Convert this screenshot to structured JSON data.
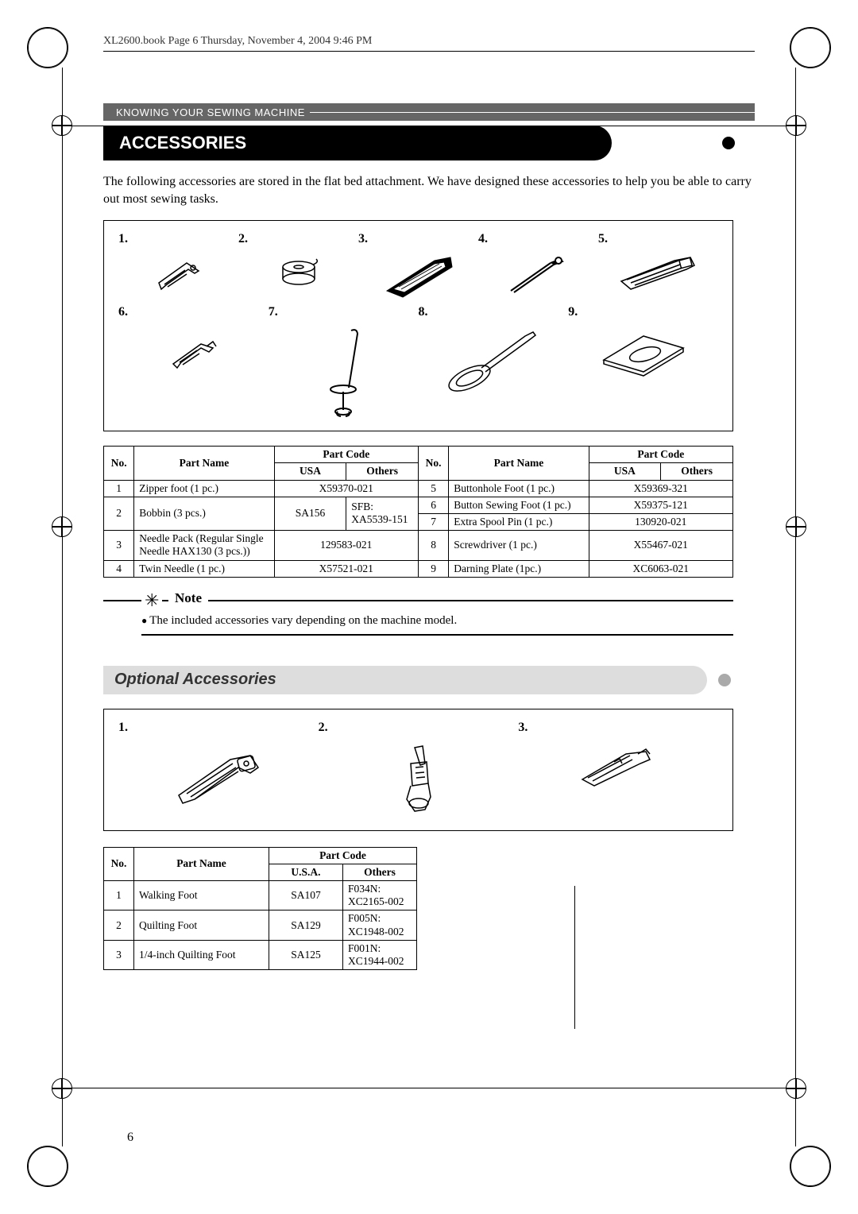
{
  "bookref": "XL2600.book  Page 6  Thursday, November 4, 2004  9:46 PM",
  "section_header": "KNOWING YOUR SEWING MACHINE",
  "title": "ACCESSORIES",
  "intro": "The following accessories are stored in the flat bed attachment. We have designed these accessories to help you be able to carry out most sewing tasks.",
  "grid_numbers": {
    "row1": [
      "1.",
      "2.",
      "3.",
      "4.",
      "5."
    ],
    "row2": [
      "6.",
      "7.",
      "8.",
      "9."
    ]
  },
  "parts_header": {
    "no": "No.",
    "part_name": "Part Name",
    "part_code": "Part Code",
    "usa": "USA",
    "others": "Others"
  },
  "parts": [
    {
      "no": "1",
      "name": "Zipper foot (1 pc.)",
      "usa": "X59370-021",
      "others": "X59370-021",
      "merge": true
    },
    {
      "no": "2",
      "name": "Bobbin (3 pcs.)",
      "usa": "SA156",
      "others": "SFB:\nXA5539-151",
      "merge": false
    },
    {
      "no": "3",
      "name": "Needle Pack (Regular Single Needle HAX130 (3 pcs.))",
      "usa": "129583-021",
      "others": "129583-021",
      "merge": true
    },
    {
      "no": "4",
      "name": "Twin Needle (1 pc.)",
      "usa": "X57521-021",
      "others": "X57521-021",
      "merge": true
    }
  ],
  "parts_r": [
    {
      "no": "5",
      "name": "Buttonhole Foot (1 pc.)",
      "usa": "X59369-321",
      "others": "X59369-321",
      "merge": true
    },
    {
      "no": "6",
      "name": "Button Sewing Foot (1 pc.)",
      "usa": "X59375-121",
      "others": "X59375-121",
      "merge": true
    },
    {
      "no": "7",
      "name": "Extra Spool Pin (1 pc.)",
      "usa": "130920-021",
      "others": "130920-021",
      "merge": true
    },
    {
      "no": "8",
      "name": "Screwdriver (1 pc.)",
      "usa": "X55467-021",
      "others": "X55467-021",
      "merge": true
    },
    {
      "no": "9",
      "name": "Darning Plate (1pc.)",
      "usa": "XC6063-021",
      "others": "XC6063-021",
      "merge": true
    }
  ],
  "note_label": "Note",
  "note_text": "The included accessories vary depending on the machine model.",
  "optional_title": "Optional Accessories",
  "opt_grid_numbers": [
    "1.",
    "2.",
    "3."
  ],
  "opt_header": {
    "no": "No.",
    "part_name": "Part Name",
    "part_code": "Part Code",
    "usa": "U.S.A.",
    "others": "Others"
  },
  "opt_parts": [
    {
      "no": "1",
      "name": "Walking Foot",
      "usa": "SA107",
      "others": "F034N:\nXC2165-002"
    },
    {
      "no": "2",
      "name": "Quilting Foot",
      "usa": "SA129",
      "others": "F005N:\nXC1948-002"
    },
    {
      "no": "3",
      "name": "1/4-inch Quilting Foot",
      "usa": "SA125",
      "others": "F001N:\nXC1944-002"
    }
  ],
  "page_number": "6"
}
